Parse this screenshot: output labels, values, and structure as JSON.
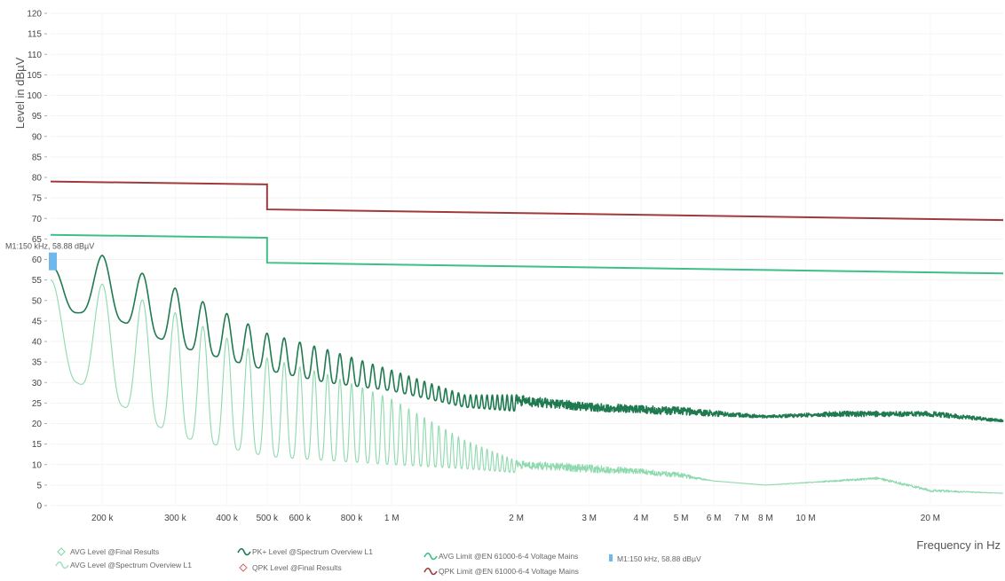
{
  "chart_data": {
    "type": "line",
    "ylabel": "Level in dBµV",
    "xlabel": "Frequency in Hz",
    "x_scale": "log",
    "xlim": [
      150000,
      30000000
    ],
    "ylim": [
      0,
      120
    ],
    "y_ticks": [
      0,
      5,
      10,
      15,
      20,
      25,
      30,
      35,
      40,
      45,
      50,
      55,
      60,
      65,
      70,
      75,
      80,
      85,
      90,
      95,
      100,
      105,
      110,
      115,
      120
    ],
    "x_ticks": [
      {
        "value": 200000,
        "label": "200 k"
      },
      {
        "value": 300000,
        "label": "300 k"
      },
      {
        "value": 400000,
        "label": "400 k"
      },
      {
        "value": 500000,
        "label": "500 k"
      },
      {
        "value": 600000,
        "label": "600 k"
      },
      {
        "value": 800000,
        "label": "800 k"
      },
      {
        "value": 1000000,
        "label": "1 M"
      },
      {
        "value": 2000000,
        "label": "2 M"
      },
      {
        "value": 3000000,
        "label": "3 M"
      },
      {
        "value": 4000000,
        "label": "4 M"
      },
      {
        "value": 5000000,
        "label": "5 M"
      },
      {
        "value": 6000000,
        "label": "6 M"
      },
      {
        "value": 7000000,
        "label": "7 M"
      },
      {
        "value": 8000000,
        "label": "8 M"
      },
      {
        "value": 10000000,
        "label": "10 M"
      },
      {
        "value": 20000000,
        "label": "20 M"
      }
    ],
    "series": [
      {
        "name": "QPK Limit @EN 61000-6-4 Voltage Mains",
        "color": "#a03a3a",
        "points": [
          [
            150000,
            79
          ],
          [
            500000,
            78.3
          ],
          [
            500000,
            72.2
          ],
          [
            30000000,
            69.6
          ]
        ]
      },
      {
        "name": "AVG Limit @EN 61000-6-4 Voltage Mains",
        "color": "#3dbf87",
        "points": [
          [
            150000,
            66
          ],
          [
            500000,
            65.3
          ],
          [
            500000,
            59.2
          ],
          [
            30000000,
            56.6
          ]
        ]
      },
      {
        "name": "PK+ Level @Spectrum Overview L1",
        "color": "#1f7a50",
        "envelope": [
          [
            150000,
            58
          ],
          [
            160000,
            60
          ],
          [
            200000,
            61
          ],
          [
            300000,
            53
          ],
          [
            500000,
            42
          ],
          [
            700000,
            38
          ],
          [
            1000000,
            33
          ],
          [
            1500000,
            27
          ],
          [
            2000000,
            27
          ],
          [
            3000000,
            25
          ],
          [
            5000000,
            24
          ],
          [
            8000000,
            22
          ],
          [
            12000000,
            23
          ],
          [
            20000000,
            23
          ],
          [
            30000000,
            21
          ]
        ],
        "baseline": [
          [
            150000,
            47
          ],
          [
            200000,
            47
          ],
          [
            300000,
            39
          ],
          [
            500000,
            33
          ],
          [
            700000,
            30
          ],
          [
            1000000,
            28
          ],
          [
            1500000,
            24
          ],
          [
            2000000,
            23
          ],
          [
            3000000,
            22
          ],
          [
            5000000,
            21
          ],
          [
            8000000,
            21
          ],
          [
            12000000,
            21
          ],
          [
            20000000,
            21
          ],
          [
            30000000,
            20
          ]
        ]
      },
      {
        "name": "AVG Level @Spectrum Overview L1",
        "color": "#8ed9ad",
        "envelope": [
          [
            150000,
            55
          ],
          [
            160000,
            55
          ],
          [
            200000,
            54
          ],
          [
            300000,
            47
          ],
          [
            500000,
            36
          ],
          [
            700000,
            32
          ],
          [
            1000000,
            26
          ],
          [
            1500000,
            16
          ],
          [
            2000000,
            11
          ],
          [
            3000000,
            10
          ],
          [
            4000000,
            9
          ],
          [
            5000000,
            8
          ],
          [
            6000000,
            6
          ],
          [
            8000000,
            5
          ],
          [
            15000000,
            7
          ],
          [
            20000000,
            4
          ],
          [
            30000000,
            3
          ]
        ],
        "baseline": [
          [
            150000,
            33
          ],
          [
            200000,
            27
          ],
          [
            300000,
            17
          ],
          [
            500000,
            12
          ],
          [
            700000,
            11
          ],
          [
            1000000,
            10
          ],
          [
            1500000,
            9
          ],
          [
            2000000,
            8
          ],
          [
            3000000,
            7
          ],
          [
            4000000,
            7
          ],
          [
            5000000,
            6
          ],
          [
            6000000,
            6
          ],
          [
            8000000,
            5
          ],
          [
            15000000,
            6
          ],
          [
            20000000,
            3
          ],
          [
            30000000,
            3
          ]
        ]
      }
    ],
    "markers": [
      {
        "name": "M1",
        "frequency": 150000,
        "level": 58.88,
        "label": "M1:150 kHz, 58.88 dBµV",
        "color": "#6fb8ec"
      }
    ],
    "legend": {
      "placement": "bottom",
      "entries": [
        {
          "label": "AVG Level @Final Results",
          "symbol": "diamond",
          "color": "#7fd3a8"
        },
        {
          "label": "AVG Level @Spectrum Overview L1",
          "symbol": "wave",
          "color": "#a8e2c2"
        },
        {
          "label": "PK+ Level @Spectrum Overview L1",
          "symbol": "wave",
          "color": "#1f7a50"
        },
        {
          "label": "QPK Level @Final Results",
          "symbol": "diamond",
          "color": "#c96a6a"
        },
        {
          "label": "AVG Limit @EN 61000-6-4 Voltage Mains",
          "symbol": "wave",
          "color": "#3dbf87"
        },
        {
          "label": "QPK Limit @EN 61000-6-4 Voltage Mains",
          "symbol": "wave",
          "color": "#a03a3a"
        },
        {
          "label": "M1:150 kHz, 58.88 dBµV",
          "symbol": "square",
          "color": "#6fb8ec"
        }
      ]
    }
  }
}
